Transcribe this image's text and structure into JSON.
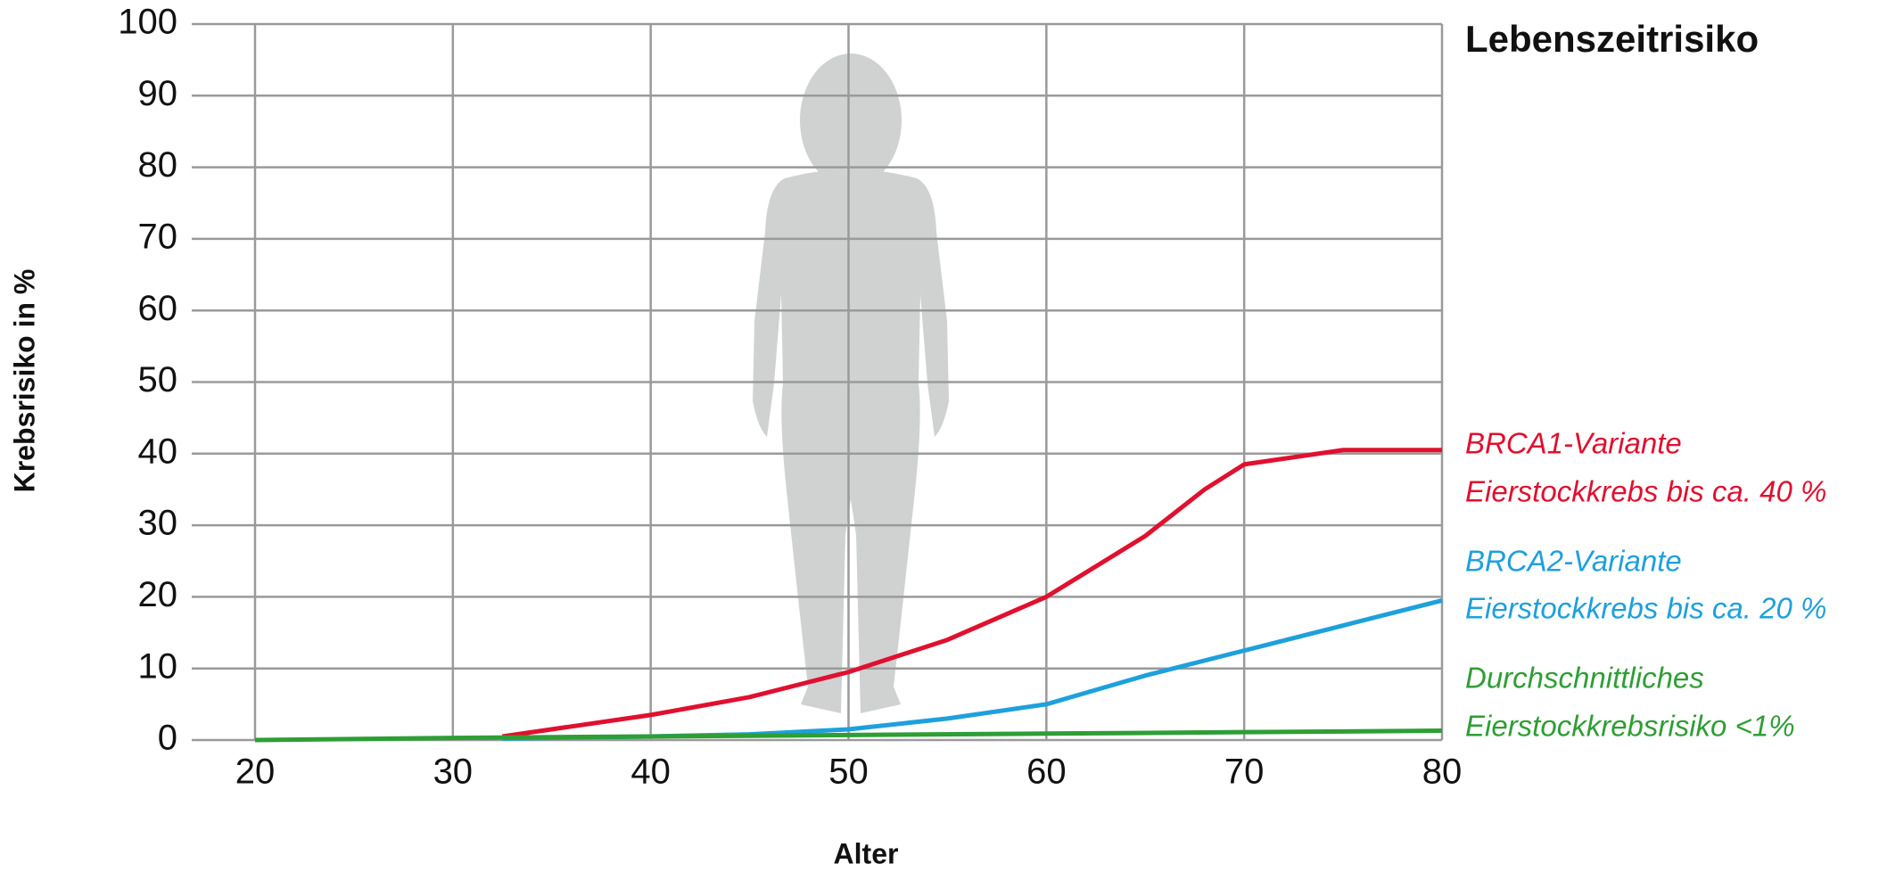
{
  "chart_data": {
    "type": "line",
    "title": "Lebenszeitrisiko",
    "x_label": "Alter",
    "y_label": "Krebsrisiko in %",
    "xlim": [
      16.8,
      80
    ],
    "xticks": [
      20,
      30,
      40,
      50,
      60,
      70,
      80
    ],
    "ylim": [
      0,
      100
    ],
    "yticks": [
      0,
      10,
      20,
      30,
      40,
      50,
      60,
      70,
      80,
      90,
      100
    ],
    "grid": true,
    "series": [
      {
        "name": "BRCA1-Variante",
        "note": "Eierstockkrebs bis ca. 40 %",
        "color": "#e0102f",
        "x": [
          32.5,
          40,
          45,
          50,
          55,
          60,
          65,
          68,
          70,
          75,
          80
        ],
        "values": [
          0.5,
          3.5,
          6,
          9.5,
          14,
          20,
          28.5,
          35,
          38.5,
          40.5,
          40.5
        ]
      },
      {
        "name": "BRCA2-Variante",
        "note": "Eierstockkrebs bis ca. 20 %",
        "color": "#1ea0dc",
        "x": [
          32.5,
          40,
          45,
          50,
          55,
          60,
          65,
          70,
          75,
          80
        ],
        "values": [
          0.2,
          0.5,
          0.8,
          1.5,
          3,
          5,
          9,
          12.5,
          16,
          19.5
        ]
      },
      {
        "name": "Durchschnittliches",
        "note": "Eierstockkrebsrisiko <1%",
        "color": "#2e9e35",
        "x": [
          20,
          30,
          40,
          50,
          60,
          70,
          80
        ],
        "values": [
          0,
          0.3,
          0.5,
          0.7,
          0.9,
          1.1,
          1.3
        ]
      }
    ]
  }
}
